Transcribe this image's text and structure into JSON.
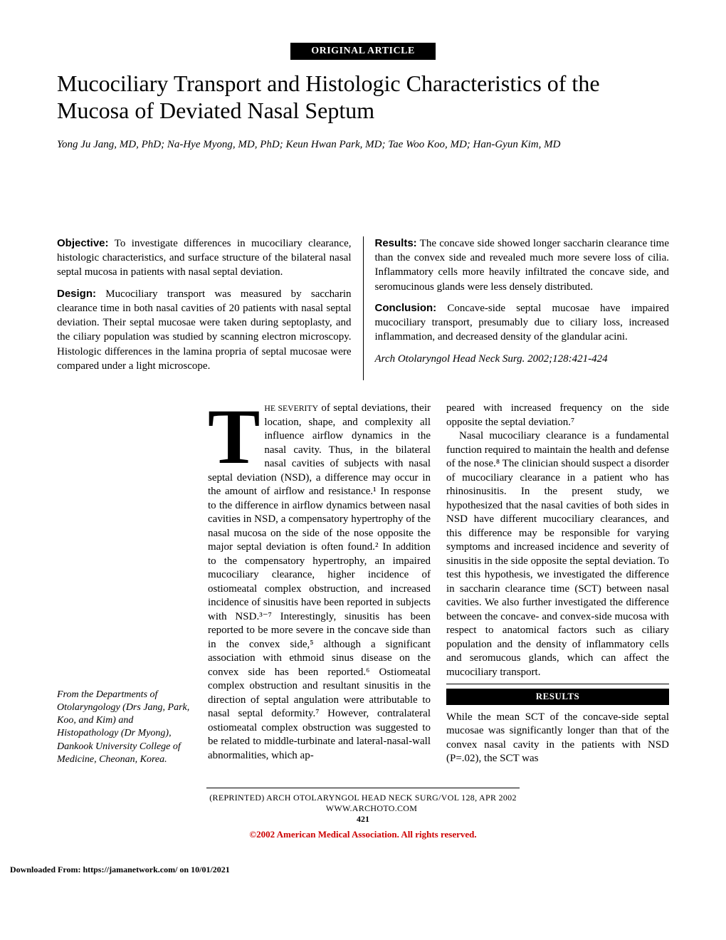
{
  "header": {
    "article_type": "ORIGINAL ARTICLE"
  },
  "title": "Mucociliary Transport and Histologic Characteristics of the Mucosa of Deviated Nasal Septum",
  "authors": "Yong Ju Jang, MD, PhD; Na-Hye Myong, MD, PhD; Keun Hwan Park, MD; Tae Woo Koo, MD; Han-Gyun Kim, MD",
  "abstract": {
    "objective_label": "Objective:",
    "objective_text": " To investigate differences in mucociliary clearance, histologic characteristics, and surface structure of the bilateral nasal septal mucosa in patients with nasal septal deviation.",
    "design_label": "Design:",
    "design_text": " Mucociliary transport was measured by saccharin clearance time in both nasal cavities of 20 patients with nasal septal deviation. Their septal mucosae were taken during septoplasty, and the ciliary population was studied by scanning electron microscopy. Histologic differences in the lamina propria of septal mucosae were compared under a light microscope.",
    "results_label": "Results:",
    "results_text": " The concave side showed longer saccharin clearance time than the convex side and revealed much more severe loss of cilia. Inflammatory cells more heavily infiltrated the concave side, and seromucinous glands were less densely distributed.",
    "conclusion_label": "Conclusion:",
    "conclusion_text": " Concave-side septal mucosae have impaired mucociliary transport, presumably due to ciliary loss, increased inflammation, and decreased density of the glandular acini.",
    "citation": "Arch Otolaryngol Head Neck Surg. 2002;128:421-424"
  },
  "body": {
    "dropcap": "T",
    "col1": "he severity of septal deviations, their location, shape, and complexity all influence airflow dynamics in the nasal cavity. Thus, in the bilateral nasal cavities of subjects with nasal septal deviation (NSD), a difference may occur in the amount of airflow and resistance.¹ In response to the difference in airflow dynamics between nasal cavities in NSD, a compensatory hypertrophy of the nasal mucosa on the side of the nose opposite the major septal deviation is often found.² In addition to the compensatory hypertrophy, an impaired mucociliary clearance, higher incidence of ostiomeatal complex obstruction, and increased incidence of sinusitis have been reported in subjects with NSD.³⁻⁷ Interestingly, sinusitis has been reported to be more severe in the concave side than in the convex side,⁵ although a significant association with ethmoid sinus disease on the convex side has been reported.⁶ Ostiomeatal complex obstruction and resultant sinusitis in the direction of septal angulation were attributable to nasal septal deformity.⁷ However, contralateral ostiomeatal complex obstruction was suggested to be related to middle-turbinate and lateral-nasal-wall abnormalities, which ap-",
    "col2_p1": "peared with increased frequency on the side opposite the septal deviation.⁷",
    "col2_p2": "Nasal mucociliary clearance is a fundamental function required to maintain the health and defense of the nose.⁸ The clinician should suspect a disorder of mucociliary clearance in a patient who has rhinosinusitis. In the present study, we hypothesized that the nasal cavities of both sides in NSD have different mucociliary clearances, and this difference may be responsible for varying symptoms and increased incidence and severity of sinusitis in the side opposite the septal deviation. To test this hypothesis, we investigated the difference in saccharin clearance time (SCT) between nasal cavities. We also further investigated the difference between the concave- and convex-side mucosa with respect to anatomical factors such as ciliary population and the density of inflammatory cells and seromucous glands, which can affect the mucociliary transport.",
    "results_heading": "RESULTS",
    "col2_p3": "While the mean SCT of the concave-side septal mucosae was significantly longer than that of the convex nasal cavity in the patients with NSD (P=.02), the SCT was"
  },
  "affiliation": "From the Departments of Otolaryngology (Drs Jang, Park, Koo, and Kim) and Histopathology (Dr Myong), Dankook University College of Medicine, Cheonan, Korea.",
  "footer": {
    "line1_left": "(REPRINTED) ARCH OTOLARYNGOL HEAD NECK SURG/VOL 128, APR 2002",
    "line1_right": "WWW.ARCHOTO.COM",
    "page": "421",
    "copyright": "©2002 American Medical Association. All rights reserved.",
    "download": "Downloaded From: https://jamanetwork.com/ on 10/01/2021"
  }
}
